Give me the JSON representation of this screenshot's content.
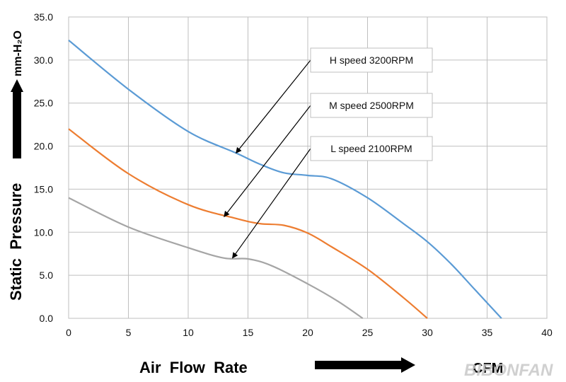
{
  "chart_data": {
    "type": "line",
    "xlabel": "Air  Flow  Rate",
    "x_unit": "CFM",
    "ylabel": "Static  Pressure",
    "y_unit": "mm-H₂O",
    "xlim": [
      0,
      40
    ],
    "ylim": [
      0,
      35
    ],
    "x_ticks": [
      "0",
      "5",
      "10",
      "15",
      "20",
      "25",
      "30",
      "35",
      "40"
    ],
    "y_ticks": [
      "0.0",
      "5.0",
      "10.0",
      "15.0",
      "20.0",
      "25.0",
      "30.0",
      "35.0"
    ],
    "grid": true,
    "series": [
      {
        "name": "H  speed  3200RPM",
        "color": "#5b9bd5",
        "x": [
          0,
          5,
          10,
          14,
          16,
          18,
          20,
          22,
          25,
          28,
          30,
          32,
          34,
          36.2
        ],
        "y": [
          32.3,
          26.6,
          21.7,
          19.2,
          17.9,
          16.9,
          16.6,
          16.2,
          14.0,
          11.0,
          8.9,
          6.3,
          3.3,
          0.0
        ]
      },
      {
        "name": "M  speed  2500RPM",
        "color": "#ed7d31",
        "x": [
          0,
          5,
          10,
          14,
          16,
          18,
          20,
          22,
          25,
          28,
          30
        ],
        "y": [
          22.0,
          16.8,
          13.2,
          11.6,
          11.0,
          10.8,
          9.9,
          8.3,
          5.7,
          2.4,
          0.0
        ]
      },
      {
        "name": "L  speed  2100RPM",
        "color": "#a5a5a5",
        "x": [
          0,
          5,
          10,
          13,
          15,
          17,
          20,
          22.5,
          24.6
        ],
        "y": [
          14.0,
          10.6,
          8.2,
          7.0,
          6.9,
          6.1,
          4.0,
          2.0,
          0.0
        ]
      }
    ],
    "annotations": [
      {
        "text": "H  speed  3200RPM",
        "target": [
          14,
          19.2
        ]
      },
      {
        "text": "M  speed  2500RPM",
        "target": [
          13,
          11.8
        ]
      },
      {
        "text": "L  speed  2100RPM",
        "target": [
          13.7,
          7.0
        ]
      }
    ]
  },
  "watermark": "BIBONFAN"
}
